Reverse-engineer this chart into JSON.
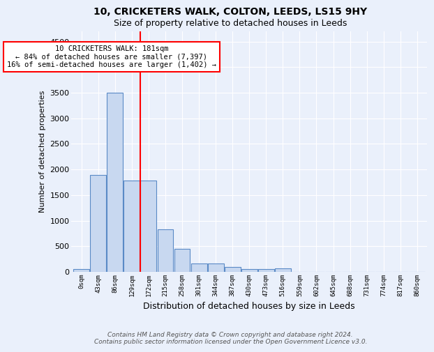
{
  "title1": "10, CRICKETERS WALK, COLTON, LEEDS, LS15 9HY",
  "title2": "Size of property relative to detached houses in Leeds",
  "xlabel": "Distribution of detached houses by size in Leeds",
  "ylabel": "Number of detached properties",
  "bin_labels": [
    "0sqm",
    "43sqm",
    "86sqm",
    "129sqm",
    "172sqm",
    "215sqm",
    "258sqm",
    "301sqm",
    "344sqm",
    "387sqm",
    "430sqm",
    "473sqm",
    "516sqm",
    "559sqm",
    "602sqm",
    "645sqm",
    "688sqm",
    "731sqm",
    "774sqm",
    "817sqm",
    "860sqm"
  ],
  "bar_values": [
    50,
    1900,
    3500,
    1780,
    1780,
    830,
    450,
    170,
    170,
    90,
    60,
    50,
    70,
    0,
    0,
    0,
    0,
    0,
    0,
    0,
    0
  ],
  "bar_color": "#c8d8f0",
  "bar_edge_color": "#5a8ac6",
  "background_color": "#eaf0fb",
  "grid_color": "#ffffff",
  "ylim": [
    0,
    4700
  ],
  "yticks": [
    0,
    500,
    1000,
    1500,
    2000,
    2500,
    3000,
    3500,
    4000,
    4500
  ],
  "vline_x_idx": 4,
  "vline_color": "red",
  "annotation_text": "10 CRICKETERS WALK: 181sqm\n← 84% of detached houses are smaller (7,397)\n16% of semi-detached houses are larger (1,402) →",
  "annotation_box_color": "white",
  "annotation_box_edge": "red",
  "footer1": "Contains HM Land Registry data © Crown copyright and database right 2024.",
  "footer2": "Contains public sector information licensed under the Open Government Licence v3.0."
}
